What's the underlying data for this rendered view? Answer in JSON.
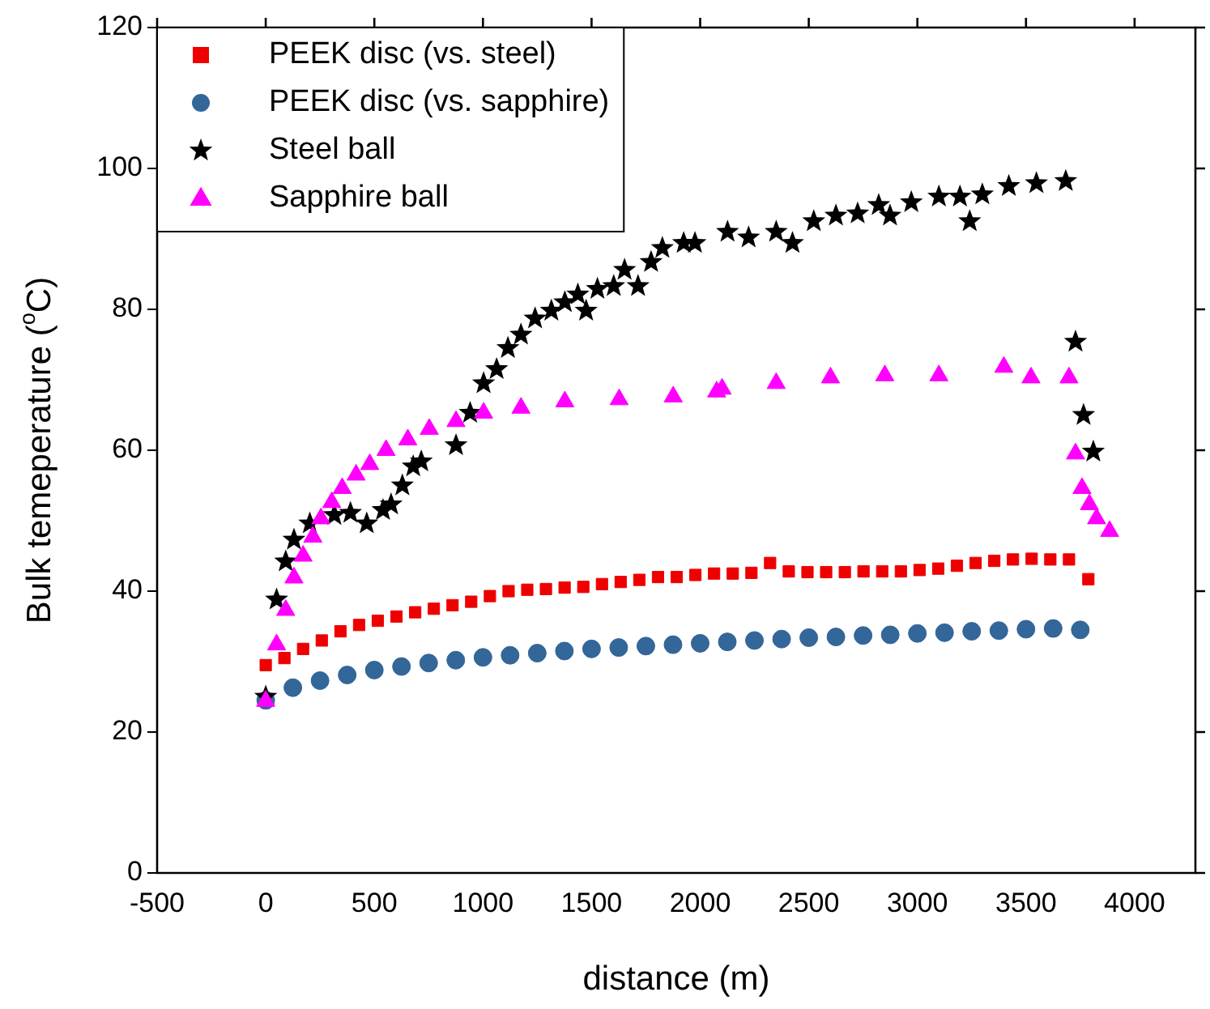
{
  "chart_data": {
    "type": "scatter",
    "xlabel": "distance (m)",
    "ylabel": "Bulk temeperature ($^{o}$C)",
    "xlim": [
      -500,
      4280
    ],
    "xticks": [
      -500,
      0,
      500,
      1000,
      1500,
      2000,
      2500,
      3000,
      3500,
      4000
    ],
    "ylim": [
      0,
      120
    ],
    "yticks": [
      0,
      20,
      40,
      60,
      80,
      100,
      120
    ],
    "grid": false,
    "legend": "top left",
    "series": [
      {
        "name": "PEEK disc (vs. steel)",
        "color": "#ee0000",
        "marker": "square",
        "x": [
          0,
          86,
          172,
          258,
          344,
          430,
          516,
          602,
          688,
          774,
          860,
          946,
          1032,
          1118,
          1204,
          1290,
          1376,
          1462,
          1548,
          1634,
          1720,
          1806,
          1892,
          1978,
          2064,
          2150,
          2236,
          2322,
          2408,
          2494,
          2580,
          2666,
          2752,
          2838,
          2924,
          3010,
          3096,
          3182,
          3268,
          3354,
          3440,
          3526,
          3612,
          3698,
          3787
        ],
        "values": [
          29.5,
          30.5,
          31.8,
          33,
          34.3,
          35.2,
          35.8,
          36.4,
          37,
          37.5,
          38,
          38.5,
          39.3,
          40,
          40.2,
          40.3,
          40.5,
          40.6,
          41,
          41.3,
          41.6,
          42,
          42,
          42.3,
          42.5,
          42.5,
          42.6,
          44,
          42.8,
          42.7,
          42.7,
          42.7,
          42.8,
          42.8,
          42.8,
          43,
          43.2,
          43.6,
          44,
          44.3,
          44.5,
          44.6,
          44.5,
          44.5,
          41.7
        ]
      },
      {
        "name": "PEEK disc (vs. sapphire)",
        "color": "#336699",
        "marker": "circle",
        "x": [
          0,
          125,
          250,
          375,
          500,
          625,
          750,
          875,
          1000,
          1125,
          1250,
          1375,
          1500,
          1625,
          1750,
          1875,
          2000,
          2125,
          2250,
          2375,
          2500,
          2625,
          2750,
          2875,
          3000,
          3125,
          3250,
          3375,
          3500,
          3625,
          3750
        ],
        "values": [
          24.5,
          26.3,
          27.3,
          28.1,
          28.8,
          29.3,
          29.8,
          30.2,
          30.6,
          30.9,
          31.2,
          31.5,
          31.8,
          32,
          32.2,
          32.4,
          32.6,
          32.8,
          33,
          33.2,
          33.4,
          33.5,
          33.7,
          33.8,
          34,
          34.1,
          34.3,
          34.4,
          34.6,
          34.7,
          34.5
        ]
      },
      {
        "name": "Steel ball",
        "color": "#000000",
        "marker": "star",
        "x": [
          0,
          50,
          92,
          130,
          203,
          316,
          390,
          465,
          540,
          577,
          629,
          679,
          716,
          876,
          941,
          1003,
          1063,
          1115,
          1175,
          1240,
          1315,
          1377,
          1437,
          1475,
          1527,
          1602,
          1652,
          1714,
          1774,
          1826,
          1924,
          1976,
          2126,
          2223,
          2350,
          2425,
          2523,
          2625,
          2725,
          2822,
          2874,
          2972,
          3099,
          3196,
          3241,
          3299,
          3421,
          3548,
          3683,
          3728,
          3765,
          3810
        ],
        "values": [
          25,
          38.8,
          44.2,
          47.3,
          49.6,
          50.8,
          51.1,
          49.6,
          51.5,
          52.3,
          55,
          57.7,
          58.4,
          60.7,
          65.3,
          69.5,
          71.5,
          74.5,
          76.4,
          78.7,
          79.8,
          81,
          82.1,
          79.8,
          82.9,
          83.3,
          85.6,
          83.3,
          86.7,
          88.7,
          89.4,
          89.4,
          91,
          90.2,
          91,
          89.4,
          92.5,
          93.3,
          93.6,
          94.8,
          93.3,
          95.2,
          96,
          96,
          92.5,
          96.3,
          97.5,
          97.9,
          98.2,
          75.4,
          65,
          59.8
        ]
      },
      {
        "name": "Sapphire ball",
        "color": "#ff00ff",
        "marker": "triangle",
        "x": [
          0,
          50,
          92,
          130,
          172,
          217,
          254,
          304,
          352,
          416,
          479,
          554,
          654,
          753,
          876,
          1003,
          1175,
          1377,
          1627,
          1876,
          2076,
          2101,
          2350,
          2600,
          2850,
          3099,
          3398,
          3523,
          3698,
          3728,
          3758,
          3792,
          3825,
          3885
        ],
        "values": [
          24.4,
          32.4,
          37.3,
          41.9,
          45,
          47.7,
          50.3,
          52.6,
          54.6,
          56.5,
          58,
          60,
          61.5,
          63,
          64.1,
          65.3,
          66,
          66.9,
          67.2,
          67.6,
          68.3,
          68.7,
          69.5,
          70.3,
          70.6,
          70.6,
          71.8,
          70.3,
          70.3,
          59.5,
          54.6,
          52.3,
          50.3,
          48.5
        ]
      }
    ]
  }
}
